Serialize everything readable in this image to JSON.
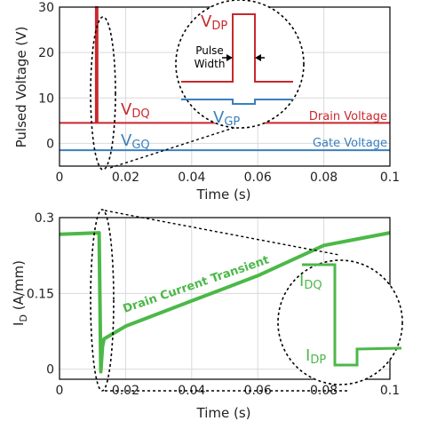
{
  "colors": {
    "drain": "#c8282d",
    "gate": "#3a7fbf",
    "current": "#4cb848",
    "frame": "#000000",
    "grid": "#d9d9d9"
  },
  "chart_data": [
    {
      "type": "line",
      "xlabel": "Time (s)",
      "ylabel": "Pulsed Voltage (V)",
      "xlim": [
        0,
        0.1
      ],
      "ylim": [
        -5,
        30
      ],
      "xticks": [
        "0",
        "0.02",
        "0.04",
        "0.06",
        "0.08",
        "0.1"
      ],
      "xtick_values": [
        0,
        0.02,
        0.04,
        0.06,
        0.08,
        0.1
      ],
      "yticks": [
        "0",
        "10",
        "20",
        "30"
      ],
      "ytick_values": [
        0,
        10,
        20,
        30
      ],
      "grid": true,
      "series": [
        {
          "name": "Drain Voltage",
          "x": [
            0,
            0.011,
            0.011,
            0.0115,
            0.0115,
            0.1
          ],
          "y": [
            4.5,
            4.5,
            30,
            30,
            4.5,
            4.5
          ]
        },
        {
          "name": "Gate Voltage",
          "x": [
            0,
            0.1
          ],
          "y": [
            -1.5,
            -1.5
          ]
        }
      ],
      "annotations": {
        "vdq": "V",
        "vdq_sub": "DQ",
        "vgq": "V",
        "vgq_sub": "GQ",
        "vdp": "V",
        "vdp_sub": "DP",
        "vgp": "V",
        "vgp_sub": "GP",
        "pulse": "Pulse",
        "width": "Width"
      }
    },
    {
      "type": "line",
      "xlabel": "Time (s)",
      "ylabel": "I",
      "ylabel_sub": "D",
      "ylabel_rest": " (A/mm)",
      "xlim": [
        0,
        0.1
      ],
      "ylim": [
        -0.02,
        0.3
      ],
      "xticks": [
        "0",
        "0.02",
        "0.04",
        "0.06",
        "0.08",
        "0.1"
      ],
      "xtick_values": [
        0,
        0.02,
        0.04,
        0.06,
        0.08,
        0.1
      ],
      "yticks": [
        "0",
        "0.15",
        "0.3"
      ],
      "ytick_values": [
        0,
        0.15,
        0.3
      ],
      "grid": true,
      "series": [
        {
          "name": "Drain Current Transient",
          "x": [
            0,
            0.012,
            0.0125,
            0.013,
            0.0135,
            0.02,
            0.04,
            0.06,
            0.08,
            0.1
          ],
          "y": [
            0.267,
            0.27,
            -0.005,
            0.045,
            0.06,
            0.085,
            0.135,
            0.185,
            0.245,
            0.27
          ]
        }
      ],
      "annotations": {
        "idq": "I",
        "idq_sub": "DQ",
        "idp": "I",
        "idp_sub": "DP"
      }
    }
  ]
}
